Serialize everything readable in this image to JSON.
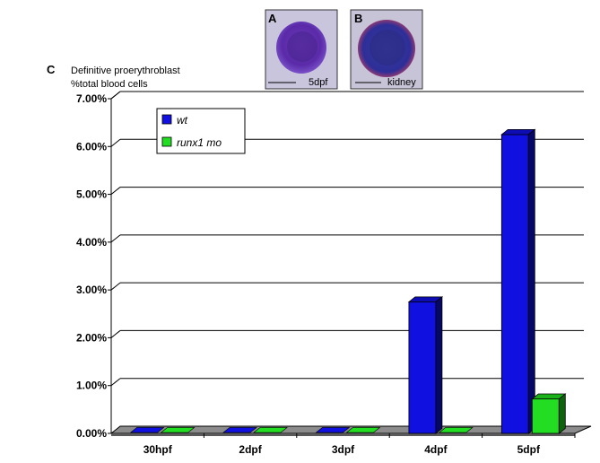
{
  "panels": {
    "a": {
      "letter": "A",
      "caption": "5dpf"
    },
    "b": {
      "letter": "B",
      "caption": "kidney"
    },
    "c": {
      "letter": "C"
    }
  },
  "colors": {
    "wt": "#1010e0",
    "runx1_mo": "#22dd22",
    "cell_a": "#7a3cc0",
    "cell_b": "#3a3aa8"
  },
  "chart_data": {
    "type": "bar",
    "title": "",
    "ylabel_lines": [
      "Definitive proerythroblast",
      "%total blood cells"
    ],
    "xlabel": "",
    "categories": [
      "30hpf",
      "2dpf",
      "3dpf",
      "4dpf",
      "5dpf"
    ],
    "yticks": [
      "0.00%",
      "1.00%",
      "2.00%",
      "3.00%",
      "4.00%",
      "5.00%",
      "6.00%",
      "7.00%"
    ],
    "ylim": [
      0,
      7
    ],
    "grid": true,
    "legend_position": "top-left",
    "series": [
      {
        "name": "wt",
        "values": [
          0,
          0,
          0,
          2.75,
          6.25
        ]
      },
      {
        "name": "runx1 mo",
        "values": [
          0,
          0,
          0,
          0,
          0.72
        ]
      }
    ]
  }
}
